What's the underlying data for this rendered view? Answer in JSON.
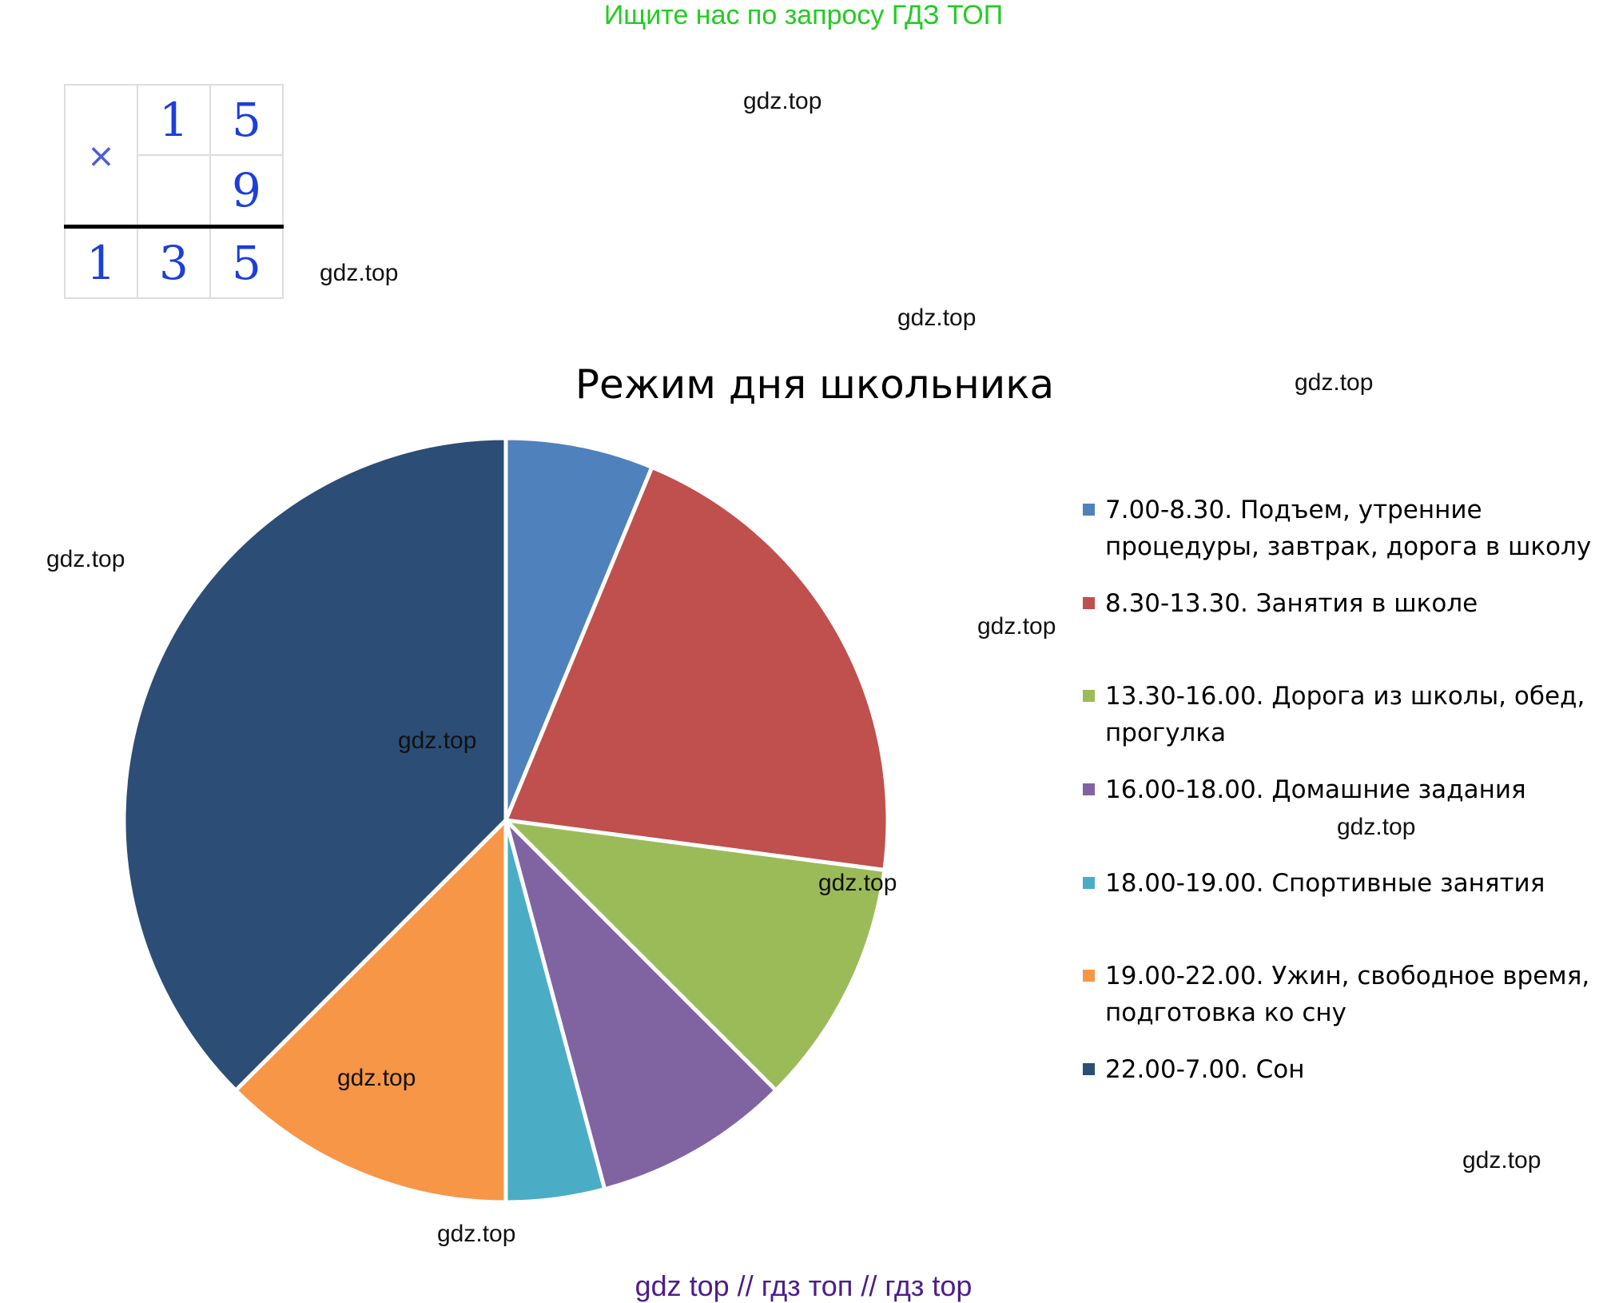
{
  "header_banner": "Ищите нас по запросу ГДЗ ТОП",
  "footer_banner": "gdz top  //  гдз топ  //  гдз top",
  "watermark_text": "gdz.top",
  "multiplication": {
    "operator": "×",
    "row1": [
      "",
      "1",
      "5"
    ],
    "row2": [
      "",
      "",
      "9"
    ],
    "result": [
      "1",
      "3",
      "5"
    ]
  },
  "chart_data": {
    "type": "pie",
    "title": "Режим дня школьника",
    "legend_position": "right",
    "start_angle_deg": 0,
    "direction": "clockwise",
    "unit": "hours",
    "slices": [
      {
        "label": "7.00-8.30. Подъем, утренние процедуры, завтрак, дорога в школу",
        "value": 1.5,
        "color": "#4f81bd"
      },
      {
        "label": "8.30-13.30. Занятия в школе",
        "value": 5,
        "color": "#c0504d"
      },
      {
        "label": "13.30-16.00. Дорога из школы, обед, прогулка",
        "value": 2.5,
        "color": "#9bbb59"
      },
      {
        "label": "16.00-18.00. Домашние задания",
        "value": 2,
        "color": "#8064a2"
      },
      {
        "label": "18.00-19.00. Спортивные занятия",
        "value": 1,
        "color": "#4bacc6"
      },
      {
        "label": "19.00-22.00. Ужин, свободное время, подготовка ко сну",
        "value": 3,
        "color": "#f79646"
      },
      {
        "label": "22.00-7.00. Сон",
        "value": 9,
        "color": "#2c4d75"
      }
    ]
  }
}
